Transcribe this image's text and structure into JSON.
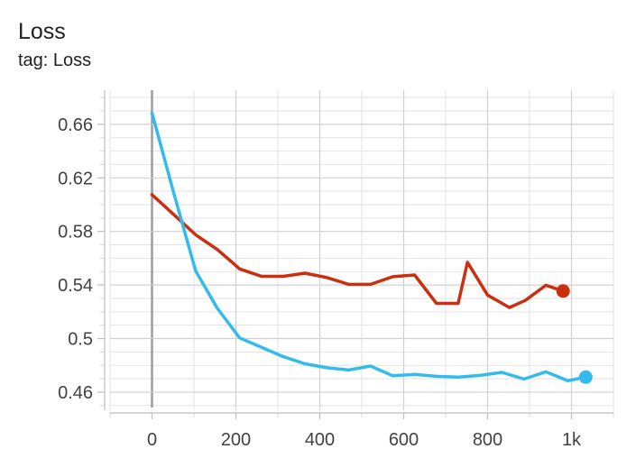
{
  "card": {
    "title": "Loss",
    "subtitle": "tag: Loss"
  },
  "chart_data": {
    "type": "line",
    "title": "Loss",
    "subtitle": "tag: Loss",
    "xlabel": "",
    "ylabel": "",
    "xlim": [
      -100,
      1100
    ],
    "ylim": [
      0.4465,
      0.6855
    ],
    "x_ticks": [
      0,
      200,
      400,
      600,
      800,
      1000
    ],
    "x_tick_labels": [
      "0",
      "200",
      "400",
      "600",
      "800",
      "1k"
    ],
    "y_ticks": [
      0.46,
      0.5,
      0.54,
      0.58,
      0.62,
      0.66
    ],
    "y_tick_labels": [
      "0.46",
      "0.5",
      "0.54",
      "0.58",
      "0.62",
      "0.66"
    ],
    "grid": true,
    "legend": "none",
    "series": [
      {
        "color": "#cc2e10",
        "x": [
          0,
          52,
          104,
          156,
          209,
          261,
          313,
          365,
          417,
          469,
          521,
          574,
          626,
          678,
          730,
          752,
          800,
          852,
          890,
          939,
          980
        ],
        "y": [
          0.6075,
          0.5925,
          0.5775,
          0.5665,
          0.552,
          0.5465,
          0.5465,
          0.5488,
          0.5455,
          0.5405,
          0.5405,
          0.5462,
          0.5475,
          0.5263,
          0.5263,
          0.557,
          0.5325,
          0.5232,
          0.5285,
          0.5398,
          0.5355
        ]
      },
      {
        "color": "#33bbee",
        "x": [
          0,
          52,
          104,
          156,
          209,
          261,
          313,
          365,
          417,
          469,
          521,
          574,
          626,
          678,
          730,
          782,
          834,
          887,
          939,
          991,
          1034
        ],
        "y": [
          0.6685,
          0.6085,
          0.5505,
          0.5225,
          0.5005,
          0.4935,
          0.4865,
          0.4812,
          0.4782,
          0.4765,
          0.4795,
          0.4722,
          0.4732,
          0.4718,
          0.4712,
          0.4725,
          0.4748,
          0.4698,
          0.4752,
          0.4685,
          0.4712
        ]
      }
    ]
  }
}
